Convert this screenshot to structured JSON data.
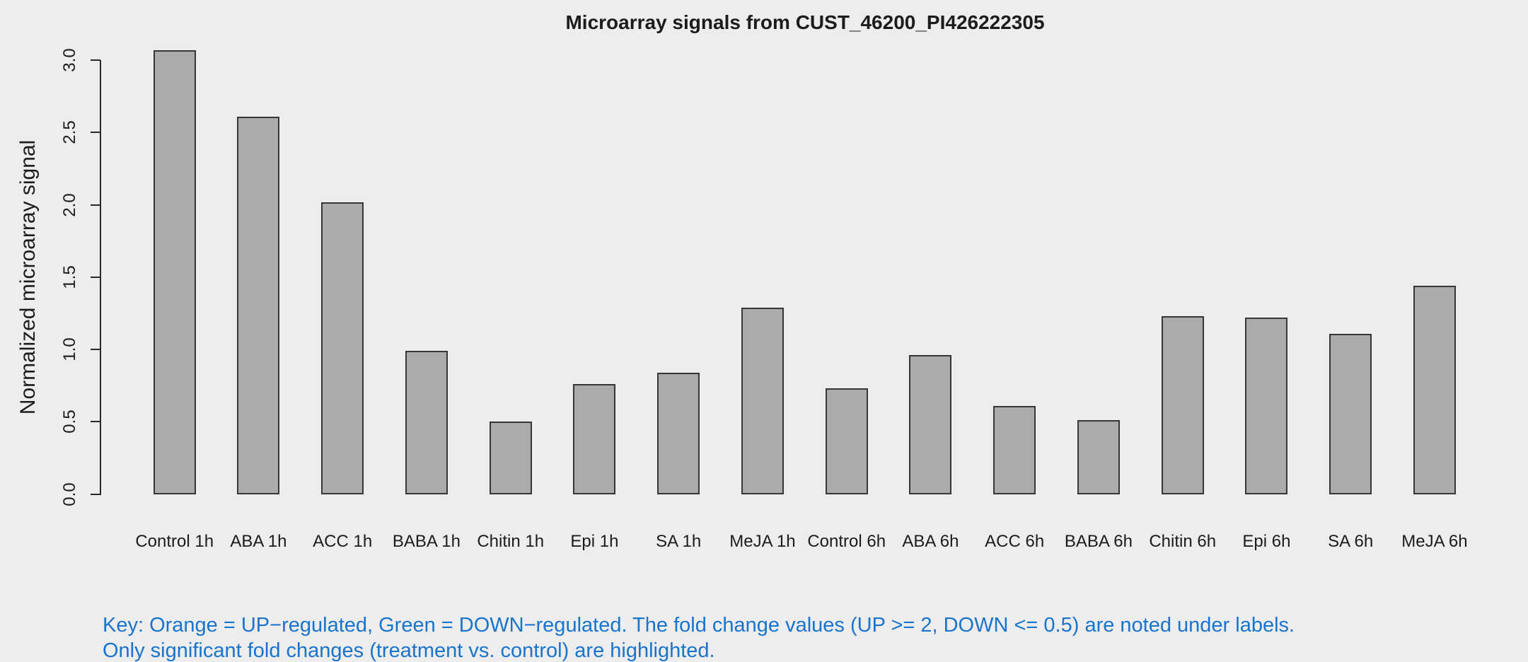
{
  "title": "Microarray signals from CUST_46200_PI426222305",
  "y_axis": {
    "label": "Normalized microarray signal",
    "tick_labels": [
      "0.0",
      "0.5",
      "1.0",
      "1.5",
      "2.0",
      "2.5",
      "3.0"
    ]
  },
  "key": {
    "line1": "Key: Orange = UP−regulated, Green = DOWN−regulated. The fold change values (UP >= 2, DOWN <= 0.5) are noted under labels.",
    "line2": "Only significant fold changes (treatment vs. control) are highlighted.",
    "color": "#1874CD"
  },
  "colors": {
    "background": "#EDEDED",
    "bar_fill": "#ABABAB",
    "bar_border": "#363636",
    "axis": "#2A2A2A",
    "text": "#1C1C1C"
  },
  "chart_data": {
    "type": "bar",
    "title": "Microarray signals from CUST_46200_PI426222305",
    "xlabel": "",
    "ylabel": "Normalized microarray signal",
    "ylim": [
      0.0,
      3.0
    ],
    "yticks": [
      0.0,
      0.5,
      1.0,
      1.5,
      2.0,
      2.5,
      3.0
    ],
    "grid": false,
    "legend_position": "none",
    "categories": [
      "Control 1h",
      "ABA 1h",
      "ACC 1h",
      "BABA 1h",
      "Chitin 1h",
      "Epi 1h",
      "SA 1h",
      "MeJA 1h",
      "Control 6h",
      "ABA 6h",
      "ACC 6h",
      "BABA 6h",
      "Chitin 6h",
      "Epi 6h",
      "SA 6h",
      "MeJA 6h"
    ],
    "values": [
      3.07,
      2.61,
      2.02,
      0.99,
      0.5,
      0.76,
      0.84,
      1.29,
      0.73,
      0.96,
      0.61,
      0.51,
      1.23,
      1.22,
      1.11,
      1.44
    ]
  }
}
